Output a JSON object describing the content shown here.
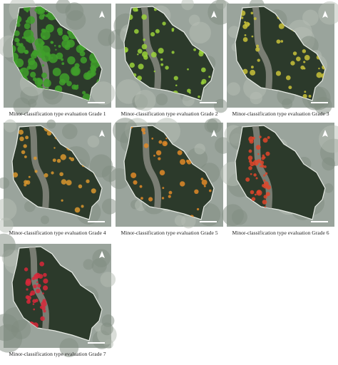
{
  "panels": [
    {
      "caption": "Minor-classification type evaluation Grade 1",
      "color": "#3fa02a"
    },
    {
      "caption": "Minor-classification type evaluation Grade 2",
      "color": "#9ad13a"
    },
    {
      "caption": "Minor-classification type evaluation Grade 3",
      "color": "#c9c23a"
    },
    {
      "caption": "Minor-classification type evaluation Grade 4",
      "color": "#d9962e"
    },
    {
      "caption": "Minor-classification type evaluation Grade 5",
      "color": "#e08a28"
    },
    {
      "caption": "Minor-classification type evaluation Grade 6",
      "color": "#e0452a"
    },
    {
      "caption": "Minor-classification type evaluation Grade 7",
      "color": "#d8283a"
    }
  ]
}
